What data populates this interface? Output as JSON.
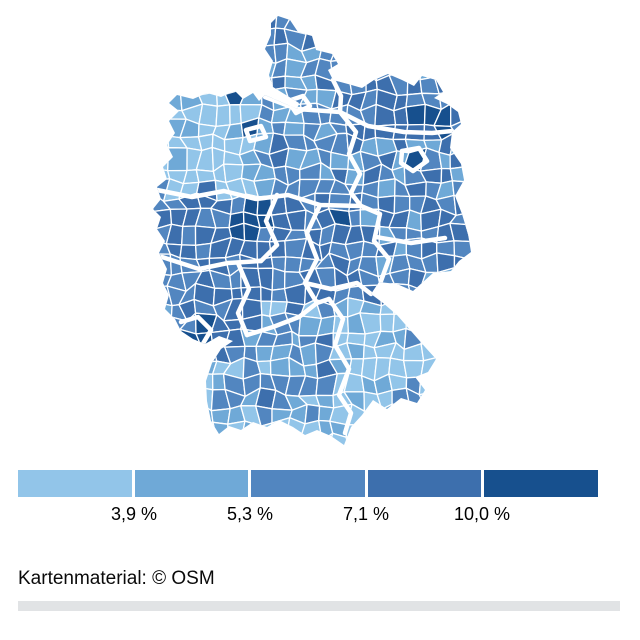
{
  "legend": {
    "labels": [
      "3,9 %",
      "5,3 %",
      "7,1 %",
      "10,0 %"
    ],
    "colors": [
      "#92c5e9",
      "#6fa9d7",
      "#5286c0",
      "#3d6fad",
      "#17508e"
    ],
    "gap_color": "#ffffff"
  },
  "map": {
    "district_border_color": "#ffffff",
    "state_border_color": "#ffffff"
  },
  "footer": {
    "attribution": "Kartenmaterial: © OSM"
  },
  "chart_data": {
    "type": "choropleth",
    "geography": "Germany, district level",
    "title": "",
    "legend_labels": [
      "3,9 %",
      "5,3 %",
      "7,1 %",
      "10,0 %"
    ],
    "legend_breaks_percent": [
      3.9,
      5.3,
      7.1,
      10.0
    ],
    "colors": [
      "#92c5e9",
      "#6fa9d7",
      "#5286c0",
      "#3d6fad",
      "#17508e"
    ],
    "legend_position": "bottom",
    "attribution": "Kartenmaterial: © OSM"
  }
}
